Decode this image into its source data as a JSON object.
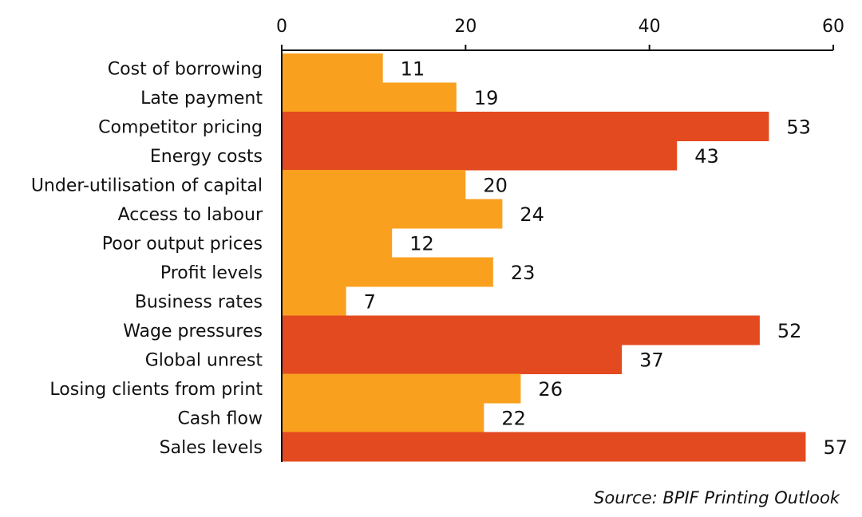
{
  "chart_data": {
    "type": "bar",
    "orientation": "horizontal",
    "categories": [
      "Cost of borrowing",
      "Late payment",
      "Competitor pricing",
      "Energy costs",
      "Under-utilisation of capital",
      "Access to labour",
      "Poor output prices",
      "Profit levels",
      "Business rates",
      "Wage pressures",
      "Global unrest",
      "Losing clients from print",
      "Cash flow",
      "Sales levels"
    ],
    "values": [
      11,
      19,
      53,
      43,
      20,
      24,
      12,
      23,
      7,
      52,
      37,
      26,
      22,
      57
    ],
    "highlighted": [
      false,
      false,
      true,
      true,
      false,
      false,
      false,
      false,
      false,
      true,
      true,
      false,
      false,
      true
    ],
    "colors": {
      "default": "#F9A11F",
      "highlight": "#E34A1F"
    },
    "xlim": [
      0,
      60
    ],
    "xticks": [
      0,
      20,
      40,
      60
    ],
    "xaxis_position": "top",
    "grid": false,
    "title": "",
    "xlabel": "",
    "ylabel": ""
  },
  "source": "Source: BPIF Printing Outlook"
}
